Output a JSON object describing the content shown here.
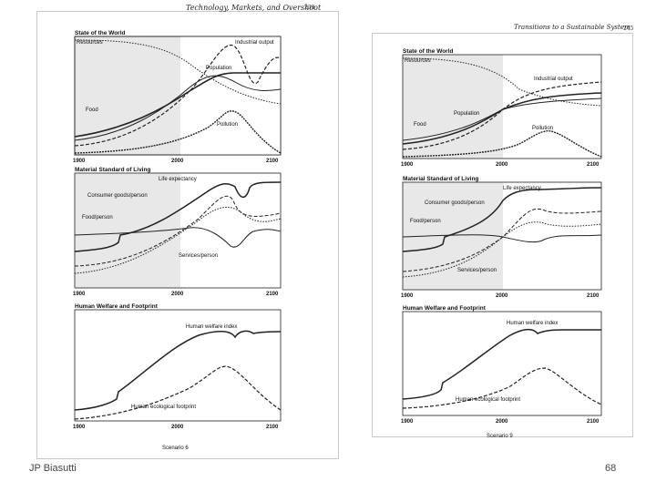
{
  "left_page": {
    "header_title": "Technology, Markets, and Overshoot",
    "header_page": "239",
    "scenario_label": "Scenario 6",
    "panels": [
      {
        "title": "State of the World",
        "labels": [
          "Resources",
          "Industrial output",
          "Population",
          "Food",
          "Pollution"
        ],
        "ticks": [
          "1900",
          "2000",
          "2100"
        ]
      },
      {
        "title": "Material Standard of Living",
        "labels": [
          "Life expectancy",
          "Consumer goods/person",
          "Food/person",
          "Services/person"
        ],
        "ticks": [
          "1900",
          "2000",
          "2100"
        ]
      },
      {
        "title": "Human Welfare and Footprint",
        "labels": [
          "Human welfare index",
          "Human ecological footprint"
        ],
        "ticks": [
          "1900",
          "2000",
          "2100"
        ]
      }
    ]
  },
  "right_page": {
    "header_title": "Transitions to a Sustainable System",
    "header_page": "245",
    "scenario_label": "Scenario 9",
    "panels": [
      {
        "title": "State of the World",
        "labels": [
          "Resources",
          "Industrial output",
          "Population",
          "Food",
          "Pollution"
        ],
        "ticks": [
          "1900",
          "2000",
          "2100"
        ]
      },
      {
        "title": "Material Standard of Living",
        "labels": [
          "Life expectancy",
          "Consumer goods/person",
          "Food/person",
          "Services/person"
        ],
        "ticks": [
          "1900",
          "2000",
          "2100"
        ]
      },
      {
        "title": "Human Welfare and Footprint",
        "labels": [
          "Human welfare index",
          "Human ecological footprint"
        ],
        "ticks": [
          "1900",
          "2000",
          "2100"
        ]
      }
    ]
  },
  "footer": {
    "author": "JP Biasutti",
    "slide_number": "68"
  }
}
